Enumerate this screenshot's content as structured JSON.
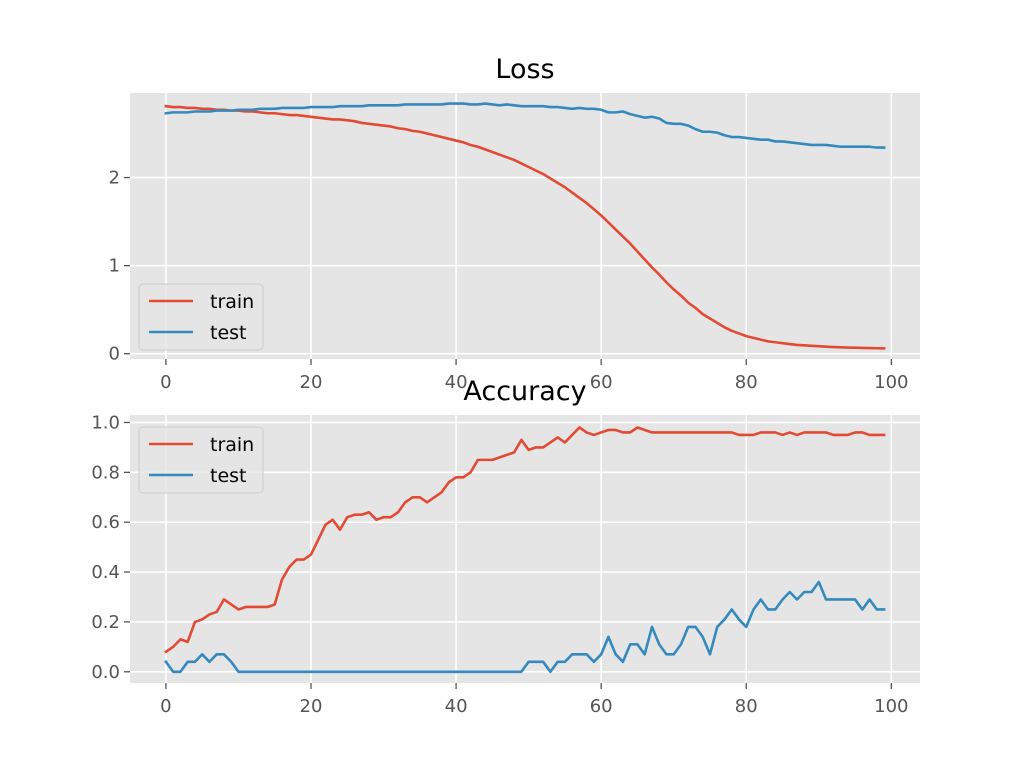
{
  "colors": {
    "axes_bg": "#e5e5e5",
    "grid": "#ffffff",
    "tick": "#555555",
    "train": "#e24a33",
    "test": "#348abd",
    "legend_bg": "#e5e5e5",
    "legend_border": "#cccccc"
  },
  "chart_data": [
    {
      "type": "line",
      "title": "Loss",
      "xlabel": "",
      "ylabel": "",
      "xlim": [
        -4.95,
        103.95
      ],
      "ylim": [
        -0.06,
        2.96
      ],
      "xticks": [
        0,
        20,
        40,
        60,
        80,
        100
      ],
      "xtick_labels": [
        "0",
        "20",
        "40",
        "60",
        "80",
        "100"
      ],
      "yticks": [
        0,
        1,
        2
      ],
      "ytick_labels": [
        "0",
        "1",
        "2"
      ],
      "grid": true,
      "legend": "lower-left",
      "x": [
        0,
        1,
        2,
        3,
        4,
        5,
        6,
        7,
        8,
        9,
        10,
        11,
        12,
        13,
        14,
        15,
        16,
        17,
        18,
        19,
        20,
        21,
        22,
        23,
        24,
        25,
        26,
        27,
        28,
        29,
        30,
        31,
        32,
        33,
        34,
        35,
        36,
        37,
        38,
        39,
        40,
        41,
        42,
        43,
        44,
        45,
        46,
        47,
        48,
        49,
        50,
        51,
        52,
        53,
        54,
        55,
        56,
        57,
        58,
        59,
        60,
        61,
        62,
        63,
        64,
        65,
        66,
        67,
        68,
        69,
        70,
        71,
        72,
        73,
        74,
        75,
        76,
        77,
        78,
        79,
        80,
        81,
        82,
        83,
        84,
        85,
        86,
        87,
        88,
        89,
        90,
        91,
        92,
        93,
        94,
        95,
        96,
        97,
        98,
        99
      ],
      "series": [
        {
          "name": "train",
          "values": [
            2.81,
            2.8,
            2.8,
            2.79,
            2.79,
            2.78,
            2.78,
            2.77,
            2.77,
            2.76,
            2.76,
            2.75,
            2.75,
            2.74,
            2.73,
            2.73,
            2.72,
            2.71,
            2.71,
            2.7,
            2.69,
            2.68,
            2.67,
            2.66,
            2.66,
            2.65,
            2.64,
            2.62,
            2.61,
            2.6,
            2.59,
            2.58,
            2.56,
            2.55,
            2.53,
            2.52,
            2.5,
            2.48,
            2.46,
            2.44,
            2.42,
            2.4,
            2.37,
            2.35,
            2.32,
            2.29,
            2.26,
            2.23,
            2.2,
            2.16,
            2.12,
            2.08,
            2.04,
            1.99,
            1.94,
            1.89,
            1.83,
            1.77,
            1.71,
            1.64,
            1.57,
            1.49,
            1.41,
            1.33,
            1.25,
            1.16,
            1.07,
            0.98,
            0.9,
            0.81,
            0.73,
            0.66,
            0.58,
            0.52,
            0.45,
            0.4,
            0.35,
            0.3,
            0.26,
            0.23,
            0.2,
            0.18,
            0.16,
            0.14,
            0.13,
            0.12,
            0.11,
            0.1,
            0.095,
            0.09,
            0.085,
            0.08,
            0.076,
            0.073,
            0.07,
            0.068,
            0.066,
            0.064,
            0.062,
            0.06
          ]
        },
        {
          "name": "test",
          "values": [
            2.73,
            2.74,
            2.74,
            2.74,
            2.75,
            2.75,
            2.75,
            2.76,
            2.76,
            2.76,
            2.77,
            2.77,
            2.77,
            2.78,
            2.78,
            2.78,
            2.79,
            2.79,
            2.79,
            2.79,
            2.8,
            2.8,
            2.8,
            2.8,
            2.81,
            2.81,
            2.81,
            2.81,
            2.82,
            2.82,
            2.82,
            2.82,
            2.82,
            2.83,
            2.83,
            2.83,
            2.83,
            2.83,
            2.83,
            2.84,
            2.84,
            2.84,
            2.83,
            2.83,
            2.84,
            2.83,
            2.82,
            2.83,
            2.82,
            2.81,
            2.81,
            2.81,
            2.81,
            2.8,
            2.8,
            2.79,
            2.78,
            2.79,
            2.78,
            2.78,
            2.77,
            2.74,
            2.74,
            2.75,
            2.72,
            2.7,
            2.68,
            2.69,
            2.67,
            2.62,
            2.61,
            2.61,
            2.59,
            2.55,
            2.52,
            2.52,
            2.51,
            2.48,
            2.46,
            2.46,
            2.45,
            2.44,
            2.43,
            2.43,
            2.41,
            2.41,
            2.4,
            2.39,
            2.38,
            2.37,
            2.37,
            2.37,
            2.36,
            2.35,
            2.35,
            2.35,
            2.35,
            2.35,
            2.34,
            2.34
          ]
        }
      ]
    },
    {
      "type": "line",
      "title": "Accuracy",
      "xlabel": "",
      "ylabel": "",
      "xlim": [
        -4.95,
        103.95
      ],
      "ylim": [
        -0.045,
        1.03
      ],
      "xticks": [
        0,
        20,
        40,
        60,
        80,
        100
      ],
      "xtick_labels": [
        "0",
        "20",
        "40",
        "60",
        "80",
        "100"
      ],
      "yticks": [
        0,
        0.2,
        0.4,
        0.6,
        0.8,
        1.0
      ],
      "ytick_labels": [
        "0.0",
        "0.2",
        "0.4",
        "0.6",
        "0.8",
        "1.0"
      ],
      "grid": true,
      "legend": "upper-left",
      "x": [
        0,
        1,
        2,
        3,
        4,
        5,
        6,
        7,
        8,
        9,
        10,
        11,
        12,
        13,
        14,
        15,
        16,
        17,
        18,
        19,
        20,
        21,
        22,
        23,
        24,
        25,
        26,
        27,
        28,
        29,
        30,
        31,
        32,
        33,
        34,
        35,
        36,
        37,
        38,
        39,
        40,
        41,
        42,
        43,
        44,
        45,
        46,
        47,
        48,
        49,
        50,
        51,
        52,
        53,
        54,
        55,
        56,
        57,
        58,
        59,
        60,
        61,
        62,
        63,
        64,
        65,
        66,
        67,
        68,
        69,
        70,
        71,
        72,
        73,
        74,
        75,
        76,
        77,
        78,
        79,
        80,
        81,
        82,
        83,
        84,
        85,
        86,
        87,
        88,
        89,
        90,
        91,
        92,
        93,
        94,
        95,
        96,
        97,
        98,
        99
      ],
      "series": [
        {
          "name": "train",
          "values": [
            0.08,
            0.1,
            0.13,
            0.12,
            0.2,
            0.21,
            0.23,
            0.24,
            0.29,
            0.27,
            0.25,
            0.26,
            0.26,
            0.26,
            0.26,
            0.27,
            0.37,
            0.42,
            0.45,
            0.45,
            0.47,
            0.53,
            0.59,
            0.61,
            0.57,
            0.62,
            0.63,
            0.63,
            0.64,
            0.61,
            0.62,
            0.62,
            0.64,
            0.68,
            0.7,
            0.7,
            0.68,
            0.7,
            0.72,
            0.76,
            0.78,
            0.78,
            0.8,
            0.85,
            0.85,
            0.85,
            0.86,
            0.87,
            0.88,
            0.93,
            0.89,
            0.9,
            0.9,
            0.92,
            0.94,
            0.92,
            0.95,
            0.98,
            0.96,
            0.95,
            0.96,
            0.97,
            0.97,
            0.96,
            0.96,
            0.98,
            0.97,
            0.96,
            0.96,
            0.96,
            0.96,
            0.96,
            0.96,
            0.96,
            0.96,
            0.96,
            0.96,
            0.96,
            0.96,
            0.95,
            0.95,
            0.95,
            0.96,
            0.96,
            0.96,
            0.95,
            0.96,
            0.95,
            0.96,
            0.96,
            0.96,
            0.96,
            0.95,
            0.95,
            0.95,
            0.96,
            0.96,
            0.95,
            0.95,
            0.95
          ]
        },
        {
          "name": "test",
          "values": [
            0.04,
            0.0,
            0.0,
            0.04,
            0.04,
            0.07,
            0.04,
            0.07,
            0.07,
            0.04,
            0.0,
            0.0,
            0.0,
            0.0,
            0.0,
            0.0,
            0.0,
            0.0,
            0.0,
            0.0,
            0.0,
            0.0,
            0.0,
            0.0,
            0.0,
            0.0,
            0.0,
            0.0,
            0.0,
            0.0,
            0.0,
            0.0,
            0.0,
            0.0,
            0.0,
            0.0,
            0.0,
            0.0,
            0.0,
            0.0,
            0.0,
            0.0,
            0.0,
            0.0,
            0.0,
            0.0,
            0.0,
            0.0,
            0.0,
            0.0,
            0.04,
            0.04,
            0.04,
            0.0,
            0.04,
            0.04,
            0.07,
            0.07,
            0.07,
            0.04,
            0.07,
            0.14,
            0.07,
            0.04,
            0.11,
            0.11,
            0.07,
            0.18,
            0.11,
            0.07,
            0.07,
            0.11,
            0.18,
            0.18,
            0.14,
            0.07,
            0.18,
            0.21,
            0.25,
            0.21,
            0.18,
            0.25,
            0.29,
            0.25,
            0.25,
            0.29,
            0.32,
            0.29,
            0.32,
            0.32,
            0.36,
            0.29,
            0.29,
            0.29,
            0.29,
            0.29,
            0.25,
            0.29,
            0.25,
            0.25
          ]
        }
      ]
    }
  ]
}
